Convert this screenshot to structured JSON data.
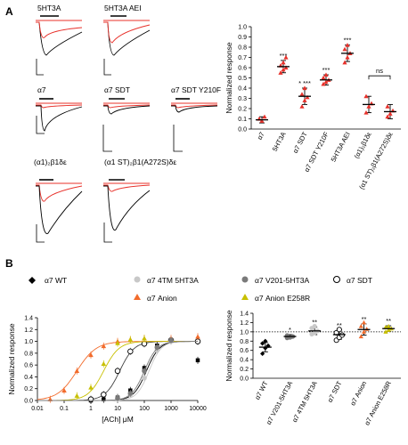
{
  "panel_a": {
    "label": "A",
    "trace_titles": [
      "5HT3A",
      "5HT3A AEI",
      "α7",
      "α7 SDT",
      "α7 SDT Y210F",
      "(α1)₂β1δε",
      "(α1 ST)₂β1(A272S)δε"
    ]
  },
  "panel_b": {
    "label": "B",
    "legend": [
      {
        "label": "α7 WT",
        "color": "#000000",
        "marker": "diamond"
      },
      {
        "label": "α7 4TM 5HT3A",
        "color": "#c8c8c8",
        "marker": "circle"
      },
      {
        "label": "α7 V201-5HT3A",
        "color": "#7a7a7a",
        "marker": "circle"
      },
      {
        "label": "α7 SDT",
        "color": "#ffffff",
        "marker": "open-circle"
      },
      {
        "label": "α7 Anion",
        "color": "#f26b2b",
        "marker": "triangle"
      },
      {
        "label": "α7 Anion E258R",
        "color": "#c8c000",
        "marker": "triangle"
      }
    ]
  },
  "chart_data": [
    {
      "type": "scatter",
      "id": "bar-a",
      "ylabel": "Normalized response",
      "ylim": [
        0,
        1.0
      ],
      "yticks": [
        0,
        0.1,
        0.2,
        0.3,
        0.4,
        0.5,
        0.6,
        0.7,
        0.8,
        0.9,
        1.0
      ],
      "categories": [
        "α7",
        "5HT3A",
        "α7 SDT",
        "α7 SDT Y210F",
        "5HT3A AEI",
        "(α1)₂β1δε",
        "(α1 ST)₂β1(A272S)δε"
      ],
      "means": [
        0.09,
        0.61,
        0.32,
        0.48,
        0.74,
        0.24,
        0.17
      ],
      "errors": [
        0.03,
        0.06,
        0.08,
        0.05,
        0.08,
        0.08,
        0.07
      ],
      "points": [
        [
          0.1,
          0.08,
          0.12
        ],
        [
          0.55,
          0.58,
          0.6,
          0.62,
          0.65,
          0.7
        ],
        [
          0.22,
          0.28,
          0.31,
          0.34,
          0.4
        ],
        [
          0.44,
          0.46,
          0.48,
          0.5,
          0.53
        ],
        [
          0.65,
          0.7,
          0.74,
          0.78,
          0.82
        ],
        [
          0.16,
          0.22,
          0.25,
          0.32
        ],
        [
          0.12,
          0.15,
          0.18,
          0.22
        ]
      ],
      "colors": [
        "#e8302a",
        "#e8302a",
        "#e8302a",
        "#e8302a",
        "#e8302a",
        "#e8302a",
        "#e8302a"
      ],
      "significance": [
        "",
        "***",
        "* ***",
        "***",
        "***",
        "",
        ""
      ],
      "ns_label": "ns"
    },
    {
      "type": "line",
      "id": "dose-b",
      "xlabel": "[ACh] μM",
      "ylabel": "Normalized response",
      "xscale": "log",
      "xlim": [
        0.01,
        10000
      ],
      "xticks": [
        "0.01",
        "0.1",
        "1",
        "10",
        "100",
        "1000",
        "10000"
      ],
      "ylim": [
        0,
        1.4
      ],
      "yticks": [
        "0.0",
        "0.2",
        "0.4",
        "0.6",
        "0.8",
        "1.0",
        "1.2",
        "1.4"
      ],
      "series": [
        {
          "name": "α7 WT",
          "color": "#000000",
          "marker": "square",
          "ec50": 120,
          "n": 1.8,
          "x": [
            1,
            3,
            10,
            30,
            100,
            300,
            1000,
            10000
          ],
          "y": [
            0.0,
            0.02,
            0.05,
            0.17,
            0.55,
            0.93,
            1.02,
            0.68
          ]
        },
        {
          "name": "α7 SDT",
          "color": "#ffffff",
          "marker": "open-circle",
          "ec50": 12,
          "n": 1.6,
          "x": [
            1,
            3,
            10,
            30,
            100,
            1000,
            10000
          ],
          "y": [
            0.02,
            0.1,
            0.5,
            0.83,
            0.96,
            1.02,
            1.0
          ]
        },
        {
          "name": "α7 Anion",
          "color": "#f26b2b",
          "marker": "triangle",
          "ec50": 0.3,
          "n": 1.2,
          "x": [
            0.03,
            0.1,
            0.3,
            1,
            3,
            10,
            30,
            100,
            1000,
            10000
          ],
          "y": [
            0.02,
            0.17,
            0.5,
            0.77,
            0.92,
            1.0,
            1.03,
            1.05,
            1.05,
            1.08
          ]
        },
        {
          "name": "α7 Anion E258R",
          "color": "#c8c000",
          "marker": "triangle",
          "ec50": 3,
          "n": 1.5,
          "x": [
            0.3,
            1,
            3,
            10,
            30,
            100
          ],
          "y": [
            0.08,
            0.22,
            0.62,
            0.97,
            1.03,
            1.05
          ]
        },
        {
          "name": "α7 4TM 5HT3A",
          "color": "#c8c8c8",
          "marker": "circle",
          "ec50": 150,
          "n": 1.9,
          "x": [
            10,
            30,
            100,
            300,
            1000
          ],
          "y": [
            0.02,
            0.1,
            0.38,
            0.85,
            1.0
          ]
        },
        {
          "name": "α7 V201-5HT3A",
          "color": "#7a7a7a",
          "marker": "circle",
          "ec50": 100,
          "n": 1.8,
          "x": [
            10,
            30,
            100,
            300,
            1000
          ],
          "y": [
            0.04,
            0.12,
            0.5,
            0.9,
            1.02
          ]
        }
      ]
    },
    {
      "type": "scatter",
      "id": "bar-b",
      "ylabel": "Normalized response",
      "ylim": [
        0,
        1.4
      ],
      "yticks": [
        "0.0",
        "0.2",
        "0.4",
        "0.6",
        "0.8",
        "1.0",
        "1.2",
        "1.4"
      ],
      "categories": [
        "α7 WT",
        "α7 V201-5HT3A",
        "α7 4TM 5HT3A",
        "α7 SDT",
        "α7 Anion",
        "α7 Anion E258R"
      ],
      "means": [
        0.67,
        0.9,
        1.02,
        0.94,
        1.05,
        1.07
      ],
      "errors": [
        0.1,
        0.04,
        0.08,
        0.1,
        0.12,
        0.06
      ],
      "points": [
        [
          0.53,
          0.65,
          0.7,
          0.75,
          0.8
        ],
        [
          0.87,
          0.88,
          0.9,
          0.92
        ],
        [
          0.95,
          0.98,
          1.02,
          1.08,
          1.12
        ],
        [
          0.82,
          0.88,
          0.93,
          0.98,
          1.05
        ],
        [
          0.9,
          1.0,
          1.06,
          1.12,
          1.2
        ],
        [
          1.0,
          1.04,
          1.07,
          1.1,
          1.12
        ]
      ],
      "colors": [
        "#000000",
        "#7a7a7a",
        "#c8c8c8",
        "#ffffff",
        "#f26b2b",
        "#c8c000"
      ],
      "significance": [
        "",
        "*",
        "**",
        "**",
        "**",
        "**"
      ],
      "reference_line": 1.0
    }
  ]
}
